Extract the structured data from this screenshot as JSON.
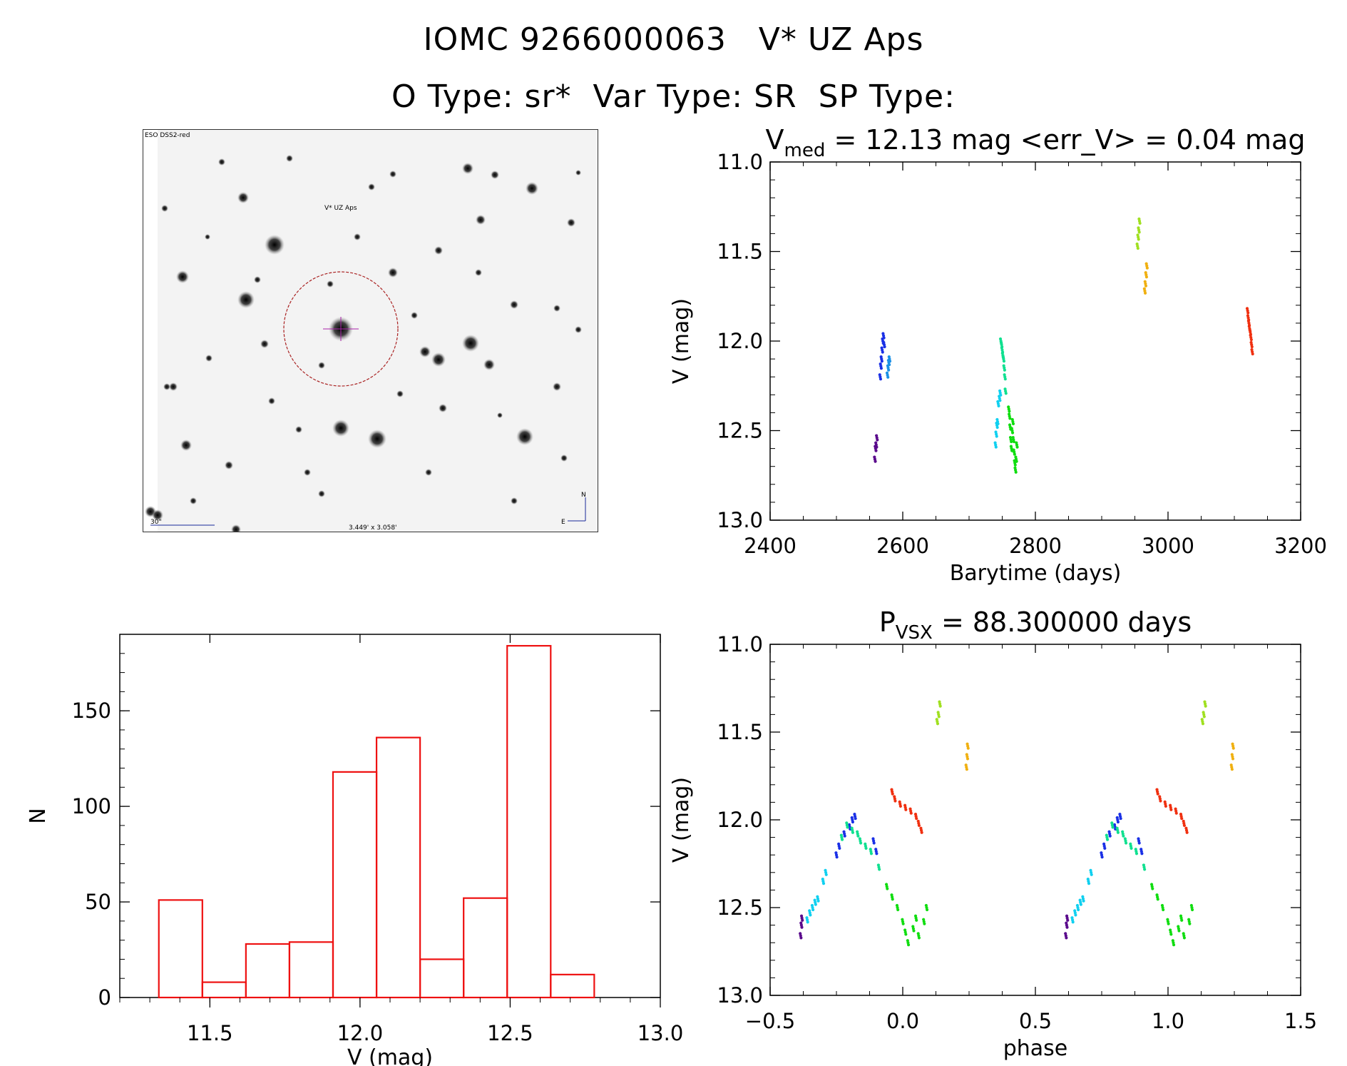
{
  "header": {
    "line1": "IOMC 9266000063   V* UZ Aps",
    "line2": "O Type: sr*  Var Type: SR  SP Type:"
  },
  "finder": {
    "source_label": "ESO DSS2-red",
    "target_label": "V* UZ Aps",
    "scale_label": "30\"",
    "fov_label": "3.449' x 3.058'",
    "north_label": "N",
    "east_label": "E",
    "colors": {
      "circle": "#aa2222",
      "cross": "#aa22aa",
      "labels": "#1a2a9a"
    }
  },
  "chart_data": [
    {
      "id": "lightcurve",
      "type": "scatter",
      "title_prefix": "V",
      "title_subscript": "med",
      "title_rest": " = 12.13 mag <err_V> = 0.04 mag",
      "xlabel": "Barytime (days)",
      "ylabel": "V (mag)",
      "xlim": [
        2400,
        3200
      ],
      "ylim": [
        13.0,
        11.0
      ],
      "x_ticks": [
        2400,
        2600,
        2800,
        3000,
        3200
      ],
      "x_tick_labels": [
        "2400",
        "2600",
        "2800",
        "3000",
        "3200"
      ],
      "y_ticks": [
        11.0,
        11.5,
        12.0,
        12.5,
        13.0
      ],
      "y_tick_labels": [
        "11.0",
        "11.5",
        "12.0",
        "12.5",
        "13.0"
      ],
      "series": [
        {
          "name": "purple",
          "color": "#5a0a8c",
          "x": [
            2558,
            2559,
            2560,
            2561
          ],
          "y": [
            12.66,
            12.6,
            12.58,
            12.54
          ]
        },
        {
          "name": "blue",
          "color": "#1a30e6",
          "x": [
            2566,
            2567,
            2568,
            2569,
            2570,
            2571,
            2572
          ],
          "y": [
            12.2,
            12.14,
            12.1,
            12.05,
            12.0,
            11.97,
            12.02
          ]
        },
        {
          "name": "sky",
          "color": "#1a90e6",
          "x": [
            2577,
            2578,
            2579,
            2580
          ],
          "y": [
            12.19,
            12.15,
            12.12,
            12.1
          ]
        },
        {
          "name": "cyan",
          "color": "#10d0f0",
          "x": [
            2740,
            2741,
            2742,
            2743,
            2744,
            2746,
            2747
          ],
          "y": [
            12.58,
            12.52,
            12.47,
            12.45,
            12.35,
            12.32,
            12.29
          ]
        },
        {
          "name": "spring",
          "color": "#10e090",
          "x": [
            2748,
            2749,
            2750,
            2751,
            2752,
            2753,
            2754,
            2755
          ],
          "y": [
            12.0,
            12.02,
            12.05,
            12.08,
            12.1,
            12.15,
            12.2,
            12.28
          ]
        },
        {
          "name": "green",
          "color": "#10dd10",
          "x": [
            2760,
            2761,
            2762,
            2763,
            2764,
            2765,
            2766,
            2767,
            2768,
            2769,
            2770,
            2771,
            2772
          ],
          "y": [
            12.38,
            12.42,
            12.48,
            12.55,
            12.6,
            12.5,
            12.45,
            12.55,
            12.62,
            12.68,
            12.72,
            12.66,
            12.58
          ]
        },
        {
          "name": "lime",
          "color": "#a0e020",
          "x": [
            2954,
            2955,
            2956,
            2957
          ],
          "y": [
            11.47,
            11.42,
            11.38,
            11.33
          ]
        },
        {
          "name": "amber",
          "color": "#f0b010",
          "x": [
            2965,
            2966,
            2967,
            2968
          ],
          "y": [
            11.72,
            11.68,
            11.63,
            11.58
          ]
        },
        {
          "name": "red",
          "color": "#f03010",
          "x": [
            3120,
            3121,
            3122,
            3123,
            3124,
            3125,
            3126,
            3127
          ],
          "y": [
            11.83,
            11.87,
            11.9,
            11.93,
            11.95,
            11.98,
            12.02,
            12.06
          ]
        }
      ]
    },
    {
      "id": "histogram",
      "type": "bar",
      "title": "",
      "xlabel": "V (mag)",
      "ylabel": "N",
      "xlim": [
        11.2,
        13.0
      ],
      "ylim": [
        0,
        190
      ],
      "x_ticks": [
        11.5,
        12.0,
        12.5,
        13.0
      ],
      "x_tick_labels": [
        "11.5",
        "12.0",
        "12.5",
        "13.0"
      ],
      "y_ticks": [
        0,
        50,
        100,
        150
      ],
      "y_tick_labels": [
        "0",
        "50",
        "100",
        "150"
      ],
      "bin_edges": [
        11.33,
        11.475,
        11.62,
        11.765,
        11.91,
        12.055,
        12.2,
        12.345,
        12.49,
        12.635,
        12.78
      ],
      "values": [
        51,
        8,
        28,
        29,
        118,
        136,
        20,
        52,
        184,
        12
      ],
      "color": "#ee1111"
    },
    {
      "id": "phased",
      "type": "scatter",
      "title_prefix": "P",
      "title_subscript": "VSX",
      "title_rest": " = 88.300000 days",
      "xlabel": "phase",
      "ylabel": "V (mag)",
      "xlim": [
        -0.5,
        1.5
      ],
      "ylim": [
        13.0,
        11.0
      ],
      "x_ticks": [
        -0.5,
        0.0,
        0.5,
        1.0,
        1.5
      ],
      "x_tick_labels": [
        "−0.5",
        "0.0",
        "0.5",
        "1.0",
        "1.5"
      ],
      "y_ticks": [
        11.0,
        11.5,
        12.0,
        12.5,
        13.0
      ],
      "y_tick_labels": [
        "11.0",
        "11.5",
        "12.0",
        "12.5",
        "13.0"
      ],
      "series": [
        {
          "name": "purple",
          "color": "#5a0a8c",
          "x": [
            -0.385,
            -0.382,
            -0.38
          ],
          "y": [
            12.66,
            12.6,
            12.56
          ]
        },
        {
          "name": "cyan",
          "color": "#10d0f0",
          "x": [
            -0.36,
            -0.35,
            -0.34,
            -0.33,
            -0.32,
            -0.3,
            -0.29
          ],
          "y": [
            12.57,
            12.53,
            12.5,
            12.47,
            12.45,
            12.35,
            12.3
          ]
        },
        {
          "name": "blue",
          "color": "#1a30e6",
          "x": [
            -0.25,
            -0.24,
            -0.22,
            -0.2,
            -0.19,
            -0.18,
            -0.11,
            -0.1
          ],
          "y": [
            12.2,
            12.15,
            12.08,
            12.04,
            12.0,
            11.98,
            12.12,
            12.18
          ]
        },
        {
          "name": "spring",
          "color": "#10e090",
          "x": [
            -0.23,
            -0.21,
            -0.19,
            -0.17,
            -0.16,
            -0.14,
            -0.12,
            -0.09
          ],
          "y": [
            12.1,
            12.03,
            12.06,
            12.08,
            12.12,
            12.15,
            12.18,
            12.27
          ]
        },
        {
          "name": "green",
          "color": "#10dd10",
          "x": [
            -0.06,
            -0.04,
            -0.02,
            0.0,
            0.01,
            0.02,
            0.04,
            0.05,
            0.06,
            0.08,
            0.09
          ],
          "y": [
            12.38,
            12.44,
            12.5,
            12.58,
            12.64,
            12.7,
            12.62,
            12.56,
            12.66,
            12.58,
            12.5
          ]
        },
        {
          "name": "red",
          "color": "#f03010",
          "x": [
            -0.04,
            -0.03,
            -0.01,
            0.01,
            0.03,
            0.05,
            0.06,
            0.07
          ],
          "y": [
            11.84,
            11.88,
            11.91,
            11.93,
            11.95,
            11.98,
            12.02,
            12.06
          ]
        },
        {
          "name": "lime",
          "color": "#a0e020",
          "x": [
            0.13,
            0.135,
            0.14
          ],
          "y": [
            11.44,
            11.4,
            11.34
          ]
        },
        {
          "name": "amber",
          "color": "#f0b010",
          "x": [
            0.24,
            0.243,
            0.245
          ],
          "y": [
            11.7,
            11.64,
            11.58
          ]
        }
      ],
      "repeat_offset": 1.0
    }
  ]
}
